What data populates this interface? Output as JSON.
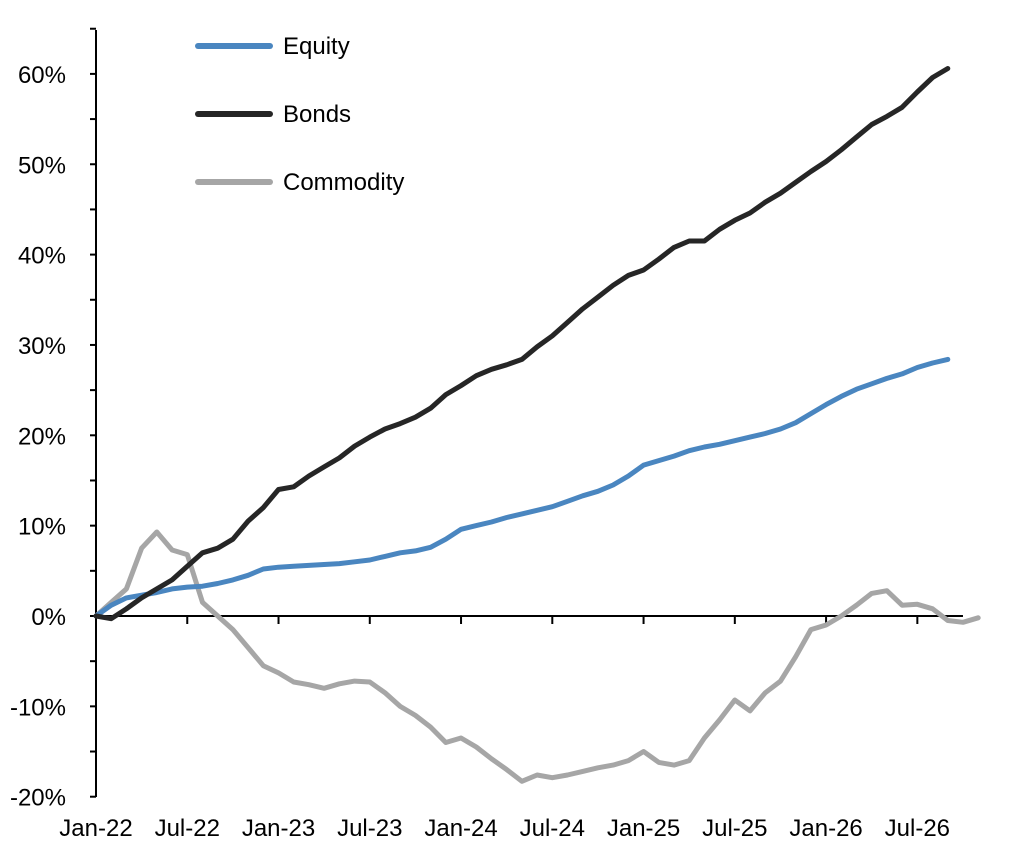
{
  "chart_data": {
    "type": "line",
    "title": "",
    "xlabel": "",
    "ylabel": "",
    "x_ticks": [
      "Jan-22",
      "Jul-22",
      "Jan-23",
      "Jul-23",
      "Jan-24",
      "Jul-24",
      "Jan-25",
      "Jul-25",
      "Jan-26",
      "Jul-26"
    ],
    "y_ticks": [
      "-20%",
      "-10%",
      "0%",
      "10%",
      "20%",
      "30%",
      "40%",
      "50%",
      "60%"
    ],
    "ylim": [
      -20,
      60
    ],
    "y_unit": "%",
    "x_range": [
      "2022-01",
      "2026-09"
    ],
    "legend_position": "top-left",
    "grid": false,
    "series": [
      {
        "name": "Equity",
        "color": "#4a86c0",
        "points": [
          [
            "2022-01",
            0.0
          ],
          [
            "2022-02",
            1.2
          ],
          [
            "2022-03",
            2.0
          ],
          [
            "2022-04",
            2.3
          ],
          [
            "2022-05",
            2.6
          ],
          [
            "2022-06",
            3.0
          ],
          [
            "2022-07",
            3.2
          ],
          [
            "2022-08",
            3.3
          ],
          [
            "2022-09",
            3.6
          ],
          [
            "2022-10",
            4.0
          ],
          [
            "2022-11",
            4.5
          ],
          [
            "2022-12",
            5.2
          ],
          [
            "2023-01",
            5.4
          ],
          [
            "2023-02",
            5.5
          ],
          [
            "2023-03",
            5.6
          ],
          [
            "2023-04",
            5.7
          ],
          [
            "2023-05",
            5.8
          ],
          [
            "2023-06",
            6.0
          ],
          [
            "2023-07",
            6.2
          ],
          [
            "2023-08",
            6.6
          ],
          [
            "2023-09",
            7.0
          ],
          [
            "2023-10",
            7.2
          ],
          [
            "2023-11",
            7.6
          ],
          [
            "2023-12",
            8.5
          ],
          [
            "2024-01",
            9.6
          ],
          [
            "2024-02",
            10.0
          ],
          [
            "2024-03",
            10.4
          ],
          [
            "2024-04",
            10.9
          ],
          [
            "2024-05",
            11.3
          ],
          [
            "2024-06",
            11.7
          ],
          [
            "2024-07",
            12.1
          ],
          [
            "2024-08",
            12.7
          ],
          [
            "2024-09",
            13.3
          ],
          [
            "2024-10",
            13.8
          ],
          [
            "2024-11",
            14.5
          ],
          [
            "2024-12",
            15.5
          ],
          [
            "2025-01",
            16.7
          ],
          [
            "2025-02",
            17.2
          ],
          [
            "2025-03",
            17.7
          ],
          [
            "2025-04",
            18.3
          ],
          [
            "2025-05",
            18.7
          ],
          [
            "2025-06",
            19.0
          ],
          [
            "2025-07",
            19.4
          ],
          [
            "2025-08",
            19.8
          ],
          [
            "2025-09",
            20.2
          ],
          [
            "2025-10",
            20.7
          ],
          [
            "2025-11",
            21.4
          ],
          [
            "2025-12",
            22.4
          ],
          [
            "2026-01",
            23.4
          ],
          [
            "2026-02",
            24.3
          ],
          [
            "2026-03",
            25.1
          ],
          [
            "2026-04",
            25.7
          ],
          [
            "2026-05",
            26.3
          ],
          [
            "2026-06",
            26.8
          ],
          [
            "2026-07",
            27.5
          ],
          [
            "2026-08",
            28.0
          ],
          [
            "2026-09",
            28.4
          ]
        ]
      },
      {
        "name": "Bonds",
        "color": "#262626",
        "points": [
          [
            "2022-01",
            0.0
          ],
          [
            "2022-02",
            -0.3
          ],
          [
            "2022-03",
            0.8
          ],
          [
            "2022-04",
            2.0
          ],
          [
            "2022-05",
            3.0
          ],
          [
            "2022-06",
            4.0
          ],
          [
            "2022-07",
            5.5
          ],
          [
            "2022-08",
            7.0
          ],
          [
            "2022-09",
            7.5
          ],
          [
            "2022-10",
            8.5
          ],
          [
            "2022-11",
            10.5
          ],
          [
            "2022-12",
            12.0
          ],
          [
            "2023-01",
            14.0
          ],
          [
            "2023-02",
            14.3
          ],
          [
            "2023-03",
            15.5
          ],
          [
            "2023-04",
            16.5
          ],
          [
            "2023-05",
            17.5
          ],
          [
            "2023-06",
            18.8
          ],
          [
            "2023-07",
            19.8
          ],
          [
            "2023-08",
            20.7
          ],
          [
            "2023-09",
            21.3
          ],
          [
            "2023-10",
            22.0
          ],
          [
            "2023-11",
            23.0
          ],
          [
            "2023-12",
            24.5
          ],
          [
            "2024-01",
            25.5
          ],
          [
            "2024-02",
            26.6
          ],
          [
            "2024-03",
            27.3
          ],
          [
            "2024-04",
            27.8
          ],
          [
            "2024-05",
            28.4
          ],
          [
            "2024-06",
            29.8
          ],
          [
            "2024-07",
            31.0
          ],
          [
            "2024-08",
            32.5
          ],
          [
            "2024-09",
            34.0
          ],
          [
            "2024-10",
            35.3
          ],
          [
            "2024-11",
            36.6
          ],
          [
            "2024-12",
            37.7
          ],
          [
            "2025-01",
            38.3
          ],
          [
            "2025-02",
            39.5
          ],
          [
            "2025-03",
            40.8
          ],
          [
            "2025-04",
            41.5
          ],
          [
            "2025-05",
            41.5
          ],
          [
            "2025-06",
            42.8
          ],
          [
            "2025-07",
            43.8
          ],
          [
            "2025-08",
            44.6
          ],
          [
            "2025-09",
            45.8
          ],
          [
            "2025-10",
            46.8
          ],
          [
            "2025-11",
            48.0
          ],
          [
            "2025-12",
            49.2
          ],
          [
            "2026-01",
            50.3
          ],
          [
            "2026-02",
            51.6
          ],
          [
            "2026-03",
            53.0
          ],
          [
            "2026-04",
            54.4
          ],
          [
            "2026-05",
            55.3
          ],
          [
            "2026-06",
            56.3
          ],
          [
            "2026-07",
            58.0
          ],
          [
            "2026-08",
            59.6
          ],
          [
            "2026-09",
            60.6
          ]
        ]
      },
      {
        "name": "Commodity",
        "color": "#a6a6a6",
        "points": [
          [
            "2022-01",
            0.0
          ],
          [
            "2022-02",
            1.5
          ],
          [
            "2022-03",
            3.0
          ],
          [
            "2022-04",
            7.5
          ],
          [
            "2022-05",
            9.3
          ],
          [
            "2022-06",
            7.3
          ],
          [
            "2022-07",
            6.8
          ],
          [
            "2022-08",
            1.5
          ],
          [
            "2022-09",
            0.0
          ],
          [
            "2022-10",
            -1.5
          ],
          [
            "2022-11",
            -3.5
          ],
          [
            "2022-12",
            -5.5
          ],
          [
            "2023-01",
            -6.3
          ],
          [
            "2023-02",
            -7.3
          ],
          [
            "2023-03",
            -7.6
          ],
          [
            "2023-04",
            -8.0
          ],
          [
            "2023-05",
            -7.5
          ],
          [
            "2023-06",
            -7.2
          ],
          [
            "2023-07",
            -7.3
          ],
          [
            "2023-08",
            -8.5
          ],
          [
            "2023-09",
            -10.0
          ],
          [
            "2023-10",
            -11.0
          ],
          [
            "2023-11",
            -12.3
          ],
          [
            "2023-12",
            -14.0
          ],
          [
            "2024-01",
            -13.5
          ],
          [
            "2024-02",
            -14.5
          ],
          [
            "2024-03",
            -15.8
          ],
          [
            "2024-04",
            -17.0
          ],
          [
            "2024-05",
            -18.3
          ],
          [
            "2024-06",
            -17.6
          ],
          [
            "2024-07",
            -17.9
          ],
          [
            "2024-08",
            -17.6
          ],
          [
            "2024-09",
            -17.2
          ],
          [
            "2024-10",
            -16.8
          ],
          [
            "2024-11",
            -16.5
          ],
          [
            "2024-12",
            -16.0
          ],
          [
            "2025-01",
            -15.0
          ],
          [
            "2025-02",
            -16.2
          ],
          [
            "2025-03",
            -16.5
          ],
          [
            "2025-04",
            -16.0
          ],
          [
            "2025-05",
            -13.5
          ],
          [
            "2025-06",
            -11.5
          ],
          [
            "2025-07",
            -9.3
          ],
          [
            "2025-08",
            -10.5
          ],
          [
            "2025-09",
            -8.5
          ],
          [
            "2025-10",
            -7.2
          ],
          [
            "2025-11",
            -4.5
          ],
          [
            "2025-12",
            -1.5
          ],
          [
            "2026-01",
            -1.0
          ],
          [
            "2026-02",
            0.0
          ],
          [
            "2026-03",
            1.2
          ],
          [
            "2026-04",
            2.5
          ],
          [
            "2026-05",
            2.8
          ],
          [
            "2026-06",
            1.2
          ],
          [
            "2026-07",
            1.3
          ],
          [
            "2026-08",
            0.8
          ],
          [
            "2026-09",
            -0.5
          ],
          [
            "2026-10",
            -0.7
          ],
          [
            "2026-11",
            -0.2
          ]
        ]
      }
    ]
  }
}
